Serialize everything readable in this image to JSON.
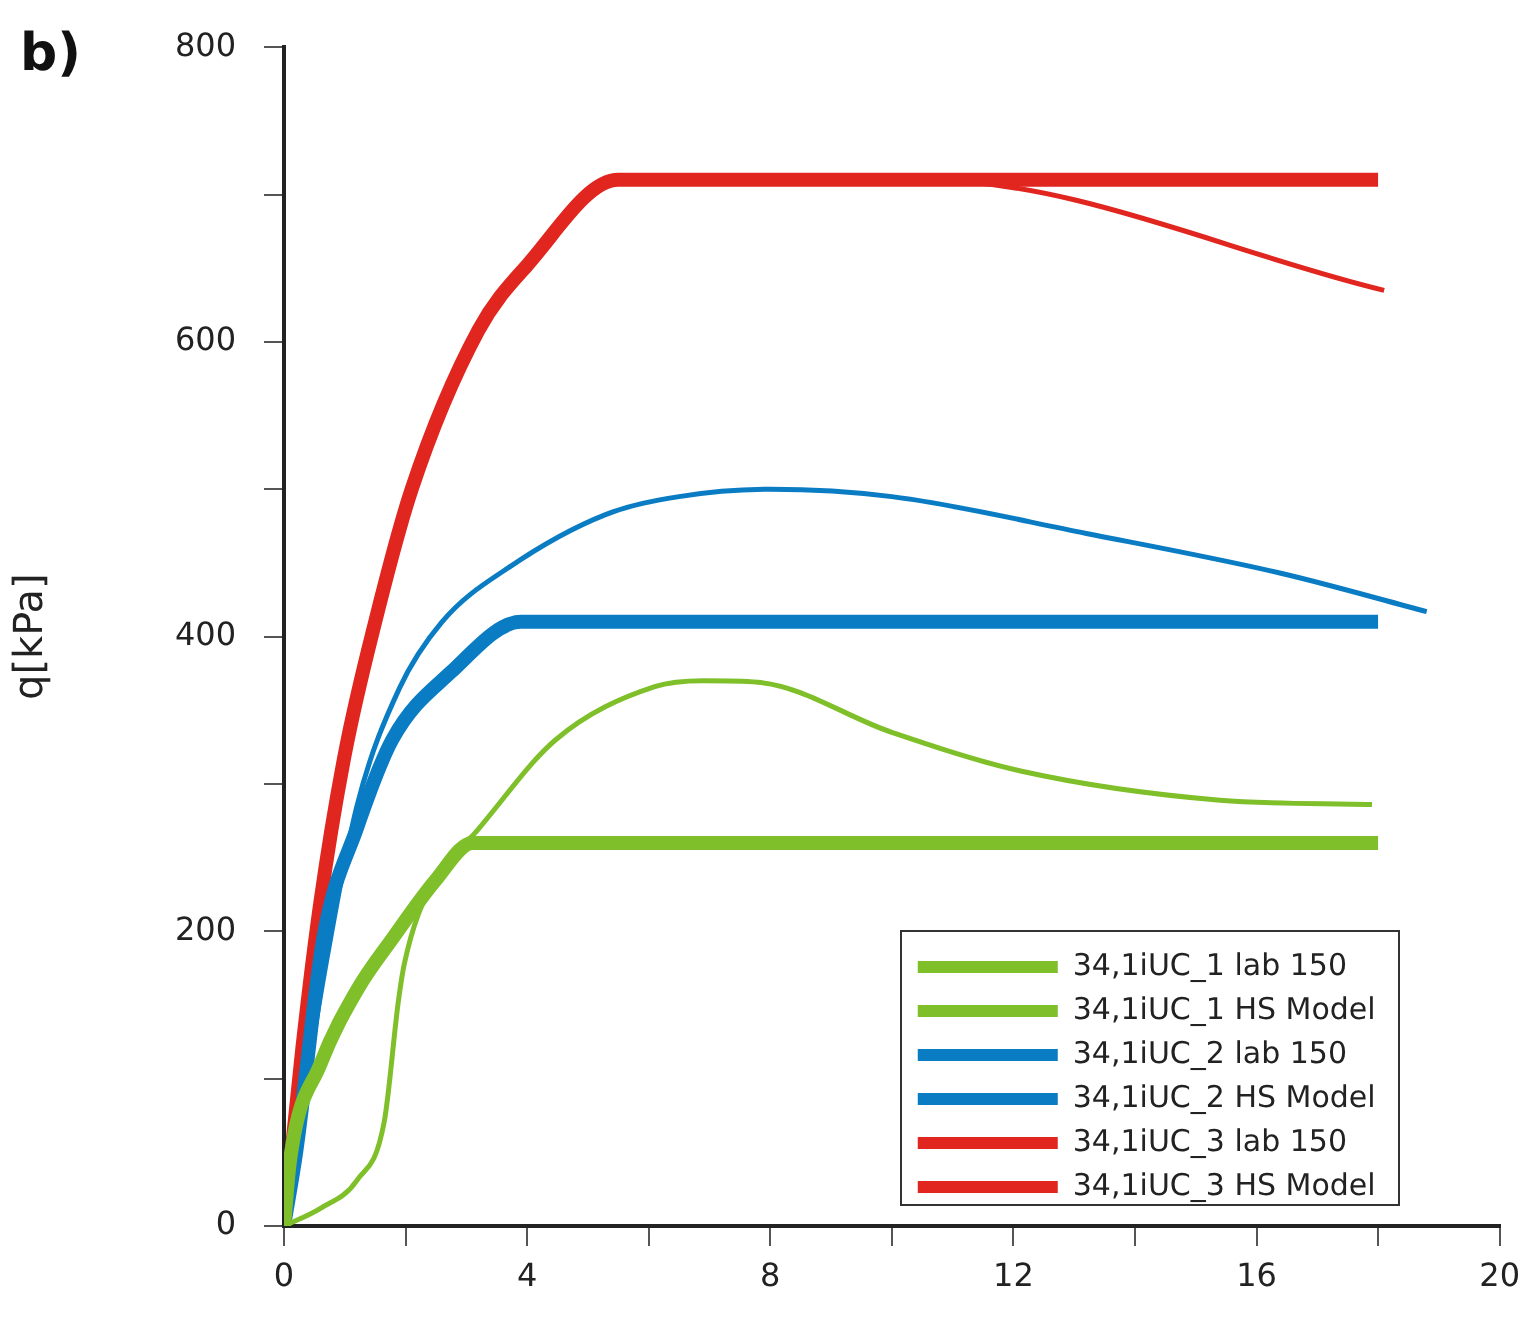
{
  "chart_data": {
    "type": "line",
    "ylabel": "q[kPa]",
    "annotations": [
      "b)"
    ],
    "xlim": [
      0,
      20
    ],
    "xticks": [
      0,
      {
        "value": 2,
        "label": null
      },
      4,
      {
        "value": 6,
        "label": null
      },
      8,
      {
        "value": 10,
        "label": null
      },
      12,
      {
        "value": 14,
        "label": null
      },
      16,
      {
        "value": 18,
        "label": null
      },
      20
    ],
    "ylim": [
      0,
      800
    ],
    "yticks": [
      0,
      {
        "value": 100,
        "label": null
      },
      200,
      {
        "value": 300,
        "label": null
      },
      400,
      {
        "value": 500,
        "label": null
      },
      600,
      {
        "value": 700,
        "label": null
      },
      800
    ],
    "grid": false,
    "legend": "bottom right",
    "marker": "none",
    "line_style": "solid",
    "series": [
      {
        "name": "34,1iUC_1 lab 150",
        "color": "#7fbf2a",
        "x": [
          0,
          0.6,
          1.2,
          1.65,
          1.88,
          1.98,
          2.43,
          3.17,
          4.47,
          6.1,
          6.9,
          7.8,
          10,
          12.1,
          15.4,
          17.9
        ],
        "values": [
          0,
          12,
          31,
          71,
          152,
          178,
          232,
          268,
          330,
          366,
          370,
          369,
          335,
          309,
          289,
          286
        ]
      },
      {
        "name": "34,1iUC_1 HS Model",
        "color": "#7fbf2a",
        "x": [
          0,
          0.1,
          0.6,
          1.2,
          1.8,
          2.5,
          3.1,
          18
        ],
        "values": [
          0,
          45,
          110,
          160,
          196,
          235,
          260,
          260
        ]
      },
      {
        "name": "34,1iUC_2 lab 150",
        "color": "#0a7cc4",
        "x": [
          0,
          0.3,
          0.7,
          1.2,
          1.9,
          2.6,
          3.7,
          5.3,
          6.5,
          8,
          10,
          13.2,
          16.4,
          18.8
        ],
        "values": [
          0,
          80,
          180,
          285,
          365,
          410,
          447,
          483,
          495,
          500,
          495,
          470,
          443,
          417
        ]
      },
      {
        "name": "34,1iUC_2 HS Model",
        "color": "#0a7cc4",
        "x": [
          0,
          0.2,
          0.65,
          1.2,
          1.78,
          2.75,
          3.9,
          18
        ],
        "values": [
          0,
          50,
          196,
          270,
          330,
          376,
          410,
          410
        ]
      },
      {
        "name": "34,1iUC_3 lab 150",
        "color": "#e0261f",
        "x": [
          0,
          0.3,
          0.6,
          1,
          1.5,
          2.1,
          3.2,
          4,
          5.5,
          10.5,
          18.1
        ],
        "values": [
          0,
          120,
          220,
          320,
          410,
          500,
          608,
          652,
          710,
          710,
          635
        ]
      },
      {
        "name": "34,1iUC_3 HS Model",
        "color": "#e0261f",
        "x": [
          0,
          0.3,
          0.6,
          1,
          1.5,
          2.1,
          3.2,
          4,
          5.5,
          18
        ],
        "values": [
          0,
          120,
          220,
          320,
          410,
          500,
          608,
          652,
          710,
          710
        ]
      }
    ]
  }
}
